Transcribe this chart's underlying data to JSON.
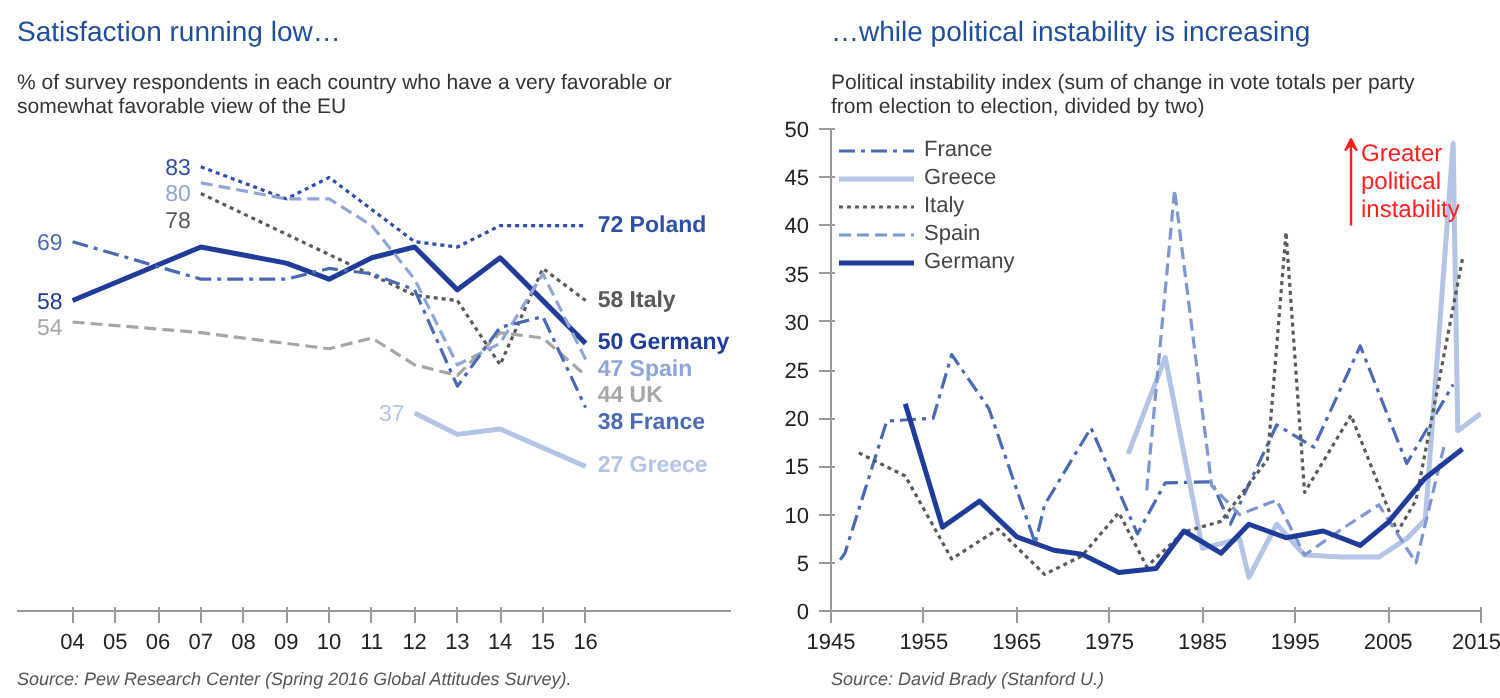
{
  "chart_data": [
    {
      "type": "line",
      "title": "Satisfaction running low…",
      "subtitle": "% of survey respondents in each country who have a very favorable or somewhat favorable view of the EU",
      "categories": [
        "04",
        "05",
        "06",
        "07",
        "08",
        "09",
        "10",
        "11",
        "12",
        "13",
        "14",
        "15",
        "16"
      ],
      "tick_labels": "x",
      "grid": false,
      "legend": false,
      "series": [
        {
          "name": "Poland",
          "color": "#2e4fa6",
          "line_style": "dotted",
          "values": [
            null,
            null,
            null,
            83,
            null,
            77,
            81,
            null,
            69,
            68,
            72,
            72,
            72
          ],
          "value_labels": [
            null,
            null,
            null,
            "83",
            null,
            null,
            null,
            null,
            null,
            null,
            null,
            null,
            "72"
          ]
        },
        {
          "name": "Italy",
          "color": "#595959",
          "line_style": "dotted",
          "values": [
            null,
            null,
            null,
            78,
            null,
            null,
            null,
            null,
            59,
            58,
            46,
            64,
            58
          ],
          "value_labels": [
            null,
            null,
            null,
            "78",
            null,
            null,
            null,
            null,
            null,
            null,
            null,
            null,
            "58"
          ]
        },
        {
          "name": "Germany",
          "color": "#1f3c99",
          "line_style": "solid",
          "values": [
            58,
            null,
            null,
            68,
            null,
            65,
            62,
            66,
            68,
            60,
            66,
            null,
            50
          ],
          "value_labels": [
            "58",
            null,
            null,
            null,
            null,
            null,
            null,
            null,
            null,
            null,
            null,
            null,
            "50"
          ]
        },
        {
          "name": "Spain",
          "color": "#8fa6d6",
          "line_style": "dashed",
          "values": [
            null,
            null,
            null,
            80,
            null,
            77,
            77,
            72,
            62,
            46,
            50,
            63,
            47
          ],
          "value_labels": [
            null,
            null,
            null,
            "80",
            null,
            null,
            null,
            null,
            null,
            null,
            null,
            null,
            "47"
          ]
        },
        {
          "name": "UK",
          "color": "#a6a6a6",
          "line_style": "dashed",
          "values": [
            54,
            null,
            null,
            52,
            null,
            null,
            49,
            51,
            46,
            44,
            52,
            51,
            44
          ],
          "value_labels": [
            "54",
            null,
            null,
            null,
            null,
            null,
            null,
            null,
            null,
            null,
            null,
            null,
            "44"
          ]
        },
        {
          "name": "France",
          "color": "#4a6ab5",
          "line_style": "dashdot",
          "values": [
            69,
            null,
            null,
            62,
            null,
            62,
            64,
            63,
            60,
            42,
            53,
            55,
            38
          ],
          "value_labels": [
            "69",
            null,
            null,
            null,
            null,
            null,
            null,
            null,
            null,
            null,
            null,
            null,
            "38"
          ]
        },
        {
          "name": "Greece",
          "color": "#b4c4e4",
          "line_style": "solid",
          "values": [
            null,
            null,
            null,
            null,
            null,
            null,
            null,
            null,
            37,
            33,
            34,
            null,
            27
          ],
          "value_labels": [
            null,
            null,
            null,
            null,
            null,
            null,
            null,
            null,
            "37",
            null,
            null,
            null,
            "27"
          ]
        }
      ],
      "annotations": [
        "Source: Pew Research Center (Spring 2016 Global Attitudes Survey)."
      ]
    },
    {
      "type": "line",
      "title": "…while political instability is increasing",
      "subtitle": "Political instability index (sum of change in vote totals per party from election to election, divided by two)",
      "xlim": [
        1945,
        2015
      ],
      "xticks": [
        1945,
        1955,
        1965,
        1975,
        1985,
        1995,
        2005,
        2015
      ],
      "ylim": [
        0,
        50
      ],
      "yticks": [
        0,
        5,
        10,
        15,
        20,
        25,
        30,
        35,
        40,
        45,
        50
      ],
      "grid": false,
      "legend": "top left",
      "series": [
        {
          "name": "France",
          "color": "#4a6ab5",
          "line_style": "dashdot",
          "x": [
            1946,
            1946.5,
            1951,
            1956,
            1958,
            1962,
            1967,
            1968,
            1973,
            1978,
            1981,
            1986,
            1988,
            1993,
            1997,
            2002,
            2007,
            2012
          ],
          "values": [
            5.3,
            6,
            19.7,
            20,
            26.6,
            21,
            7,
            11,
            19,
            8,
            13.3,
            13.4,
            9,
            19.3,
            17,
            27.5,
            15.3,
            23.5
          ]
        },
        {
          "name": "Greece",
          "color": "#b4c4e4",
          "line_style": "solid",
          "x": [
            1977,
            1981,
            1985,
            1989,
            1990,
            1993,
            1996,
            2000,
            2004,
            2007,
            2009,
            2012,
            2012.5,
            2015
          ],
          "values": [
            16.3,
            26.3,
            6.5,
            7.5,
            3.5,
            9,
            5.8,
            5.6,
            5.6,
            7.5,
            9.5,
            48.5,
            18.7,
            20.5
          ]
        },
        {
          "name": "Italy",
          "color": "#595959",
          "line_style": "dotted",
          "x": [
            1948,
            1953,
            1958,
            1963,
            1968,
            1972,
            1976,
            1979,
            1983,
            1987,
            1992,
            1994,
            1996,
            2001,
            2006,
            2008,
            2013
          ],
          "values": [
            16.4,
            14,
            5.4,
            8.5,
            3.8,
            5.7,
            10.2,
            4.6,
            8.2,
            9.3,
            15.7,
            39.3,
            12.3,
            20.3,
            8.2,
            11.5,
            36.5
          ]
        },
        {
          "name": "Spain",
          "color": "#7f97d0",
          "line_style": "dashed",
          "x": [
            1979,
            1982,
            1986,
            1989,
            1993,
            1996,
            2000,
            2004,
            2008,
            2011
          ],
          "values": [
            12.5,
            43.7,
            13,
            10,
            11.5,
            5.8,
            8.5,
            11,
            5,
            17
          ]
        },
        {
          "name": "Germany",
          "color": "#1f3c99",
          "line_style": "solid",
          "x": [
            1953,
            1957,
            1961,
            1965,
            1969,
            1972,
            1976,
            1980,
            1983,
            1987,
            1990,
            1994,
            1998,
            2002,
            2005,
            2009,
            2013
          ],
          "values": [
            21.5,
            8.7,
            11.4,
            7.7,
            6.3,
            5.9,
            4,
            4.4,
            8.3,
            6,
            9,
            7.6,
            8.3,
            6.8,
            9.2,
            13.8,
            16.8
          ]
        }
      ],
      "annotations": [
        "Greater political instability",
        "Source: David Brady (Stanford U.)"
      ]
    }
  ]
}
